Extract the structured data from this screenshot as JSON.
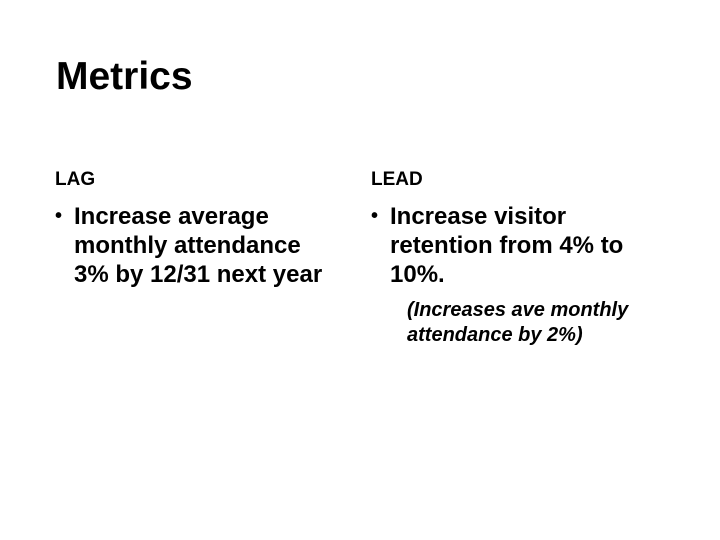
{
  "slide": {
    "title": "Metrics",
    "bullet_char": "•",
    "columns": {
      "lag": {
        "header": "LAG",
        "bullet": "Increase average monthly attendance 3% by 12/31 next year"
      },
      "lead": {
        "header": "LEAD",
        "bullet": "Increase visitor retention from 4% to 10%.",
        "note": "(Increases ave monthly attendance by 2%)"
      }
    },
    "colors": {
      "background": "#ffffff",
      "text": "#000000"
    }
  }
}
